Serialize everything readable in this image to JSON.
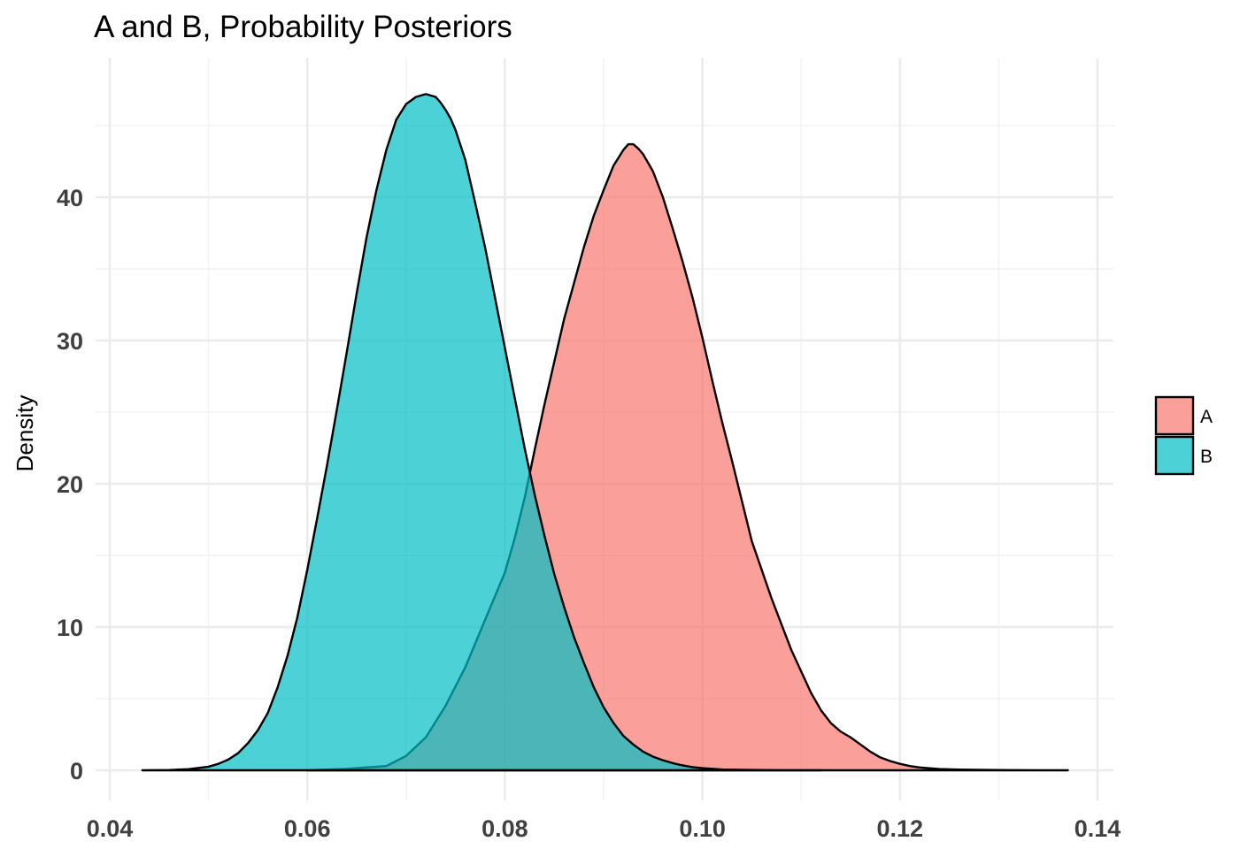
{
  "chart_data": {
    "type": "area",
    "title": "A and B, Probability Posteriors",
    "xlabel": "",
    "ylabel": "Density",
    "xlim": [
      0.04,
      0.14
    ],
    "ylim": [
      0,
      48
    ],
    "x_ticks": [
      0.04,
      0.06,
      0.08,
      0.1,
      0.12,
      0.14
    ],
    "x_tick_labels": [
      "0.04",
      "0.06",
      "0.08",
      "0.10",
      "0.12",
      "0.14"
    ],
    "y_ticks": [
      0,
      10,
      20,
      30,
      40
    ],
    "y_tick_labels": [
      "0",
      "10",
      "20",
      "30",
      "40"
    ],
    "grid": true,
    "legend_position": "right",
    "series": [
      {
        "name": "A",
        "color": "#F8766D",
        "x": [
          0.06,
          0.064,
          0.068,
          0.07,
          0.072,
          0.074,
          0.076,
          0.078,
          0.08,
          0.081,
          0.082,
          0.083,
          0.084,
          0.085,
          0.086,
          0.087,
          0.088,
          0.089,
          0.09,
          0.091,
          0.092,
          0.0925,
          0.093,
          0.0935,
          0.094,
          0.0945,
          0.095,
          0.096,
          0.097,
          0.098,
          0.099,
          0.1,
          0.101,
          0.102,
          0.103,
          0.104,
          0.105,
          0.106,
          0.107,
          0.108,
          0.109,
          0.11,
          0.111,
          0.112,
          0.113,
          0.114,
          0.115,
          0.116,
          0.117,
          0.118,
          0.119,
          0.12,
          0.121,
          0.122,
          0.123,
          0.124,
          0.126,
          0.128,
          0.13,
          0.132,
          0.134,
          0.136,
          0.137
        ],
        "y": [
          0.0,
          0.1,
          0.3,
          1.0,
          2.3,
          4.5,
          7.2,
          10.5,
          13.8,
          16.2,
          19.0,
          22.3,
          25.5,
          28.5,
          31.5,
          34.0,
          36.5,
          38.7,
          40.5,
          42.2,
          43.3,
          43.7,
          43.7,
          43.4,
          43.0,
          42.4,
          41.8,
          40.0,
          37.8,
          35.5,
          33.0,
          30.2,
          27.2,
          24.3,
          21.6,
          18.8,
          16.0,
          14.0,
          12.0,
          10.2,
          8.4,
          6.9,
          5.4,
          4.2,
          3.3,
          2.7,
          2.3,
          1.8,
          1.3,
          0.9,
          0.65,
          0.45,
          0.3,
          0.2,
          0.14,
          0.09,
          0.05,
          0.03,
          0.015,
          0.008,
          0.004,
          0.001,
          0.0
        ]
      },
      {
        "name": "B",
        "color": "#00BFC4",
        "x": [
          0.0433,
          0.046,
          0.048,
          0.05,
          0.051,
          0.052,
          0.053,
          0.054,
          0.055,
          0.056,
          0.057,
          0.058,
          0.059,
          0.06,
          0.061,
          0.062,
          0.063,
          0.064,
          0.065,
          0.066,
          0.067,
          0.068,
          0.069,
          0.07,
          0.071,
          0.072,
          0.073,
          0.0735,
          0.074,
          0.0745,
          0.075,
          0.076,
          0.077,
          0.078,
          0.079,
          0.08,
          0.081,
          0.082,
          0.083,
          0.084,
          0.085,
          0.086,
          0.087,
          0.088,
          0.089,
          0.09,
          0.091,
          0.092,
          0.093,
          0.094,
          0.095,
          0.096,
          0.097,
          0.098,
          0.099,
          0.1,
          0.101,
          0.102,
          0.104,
          0.106,
          0.108,
          0.11,
          0.112
        ],
        "y": [
          0.0,
          0.02,
          0.08,
          0.25,
          0.45,
          0.75,
          1.2,
          1.9,
          2.8,
          4.0,
          5.8,
          8.0,
          10.7,
          14.0,
          17.6,
          21.3,
          25.2,
          29.2,
          33.3,
          37.2,
          40.5,
          43.3,
          45.4,
          46.5,
          47.0,
          47.2,
          47.0,
          46.6,
          46.1,
          45.5,
          44.7,
          42.6,
          39.6,
          36.5,
          33.0,
          29.5,
          26.0,
          22.5,
          19.3,
          16.4,
          13.7,
          11.4,
          9.3,
          7.5,
          5.8,
          4.4,
          3.3,
          2.4,
          1.8,
          1.3,
          0.95,
          0.7,
          0.5,
          0.34,
          0.22,
          0.15,
          0.1,
          0.06,
          0.03,
          0.015,
          0.006,
          0.002,
          0.0
        ]
      }
    ],
    "legend": [
      {
        "label": "A",
        "color": "#F8766D"
      },
      {
        "label": "B",
        "color": "#00BFC4"
      }
    ]
  }
}
